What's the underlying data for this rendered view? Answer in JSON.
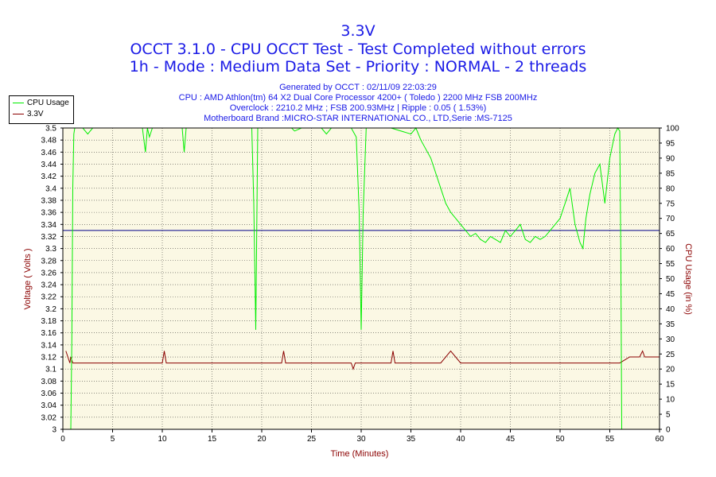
{
  "header": {
    "title": "3.3V",
    "line1": "OCCT 3.1.0 - CPU OCCT Test - Test Completed without errors",
    "line2": "1h - Mode : Medium Data Set - Priority : NORMAL - 2 threads",
    "generated": "Generated by OCCT : 02/11/09 22:03:29",
    "cpu": "CPU : AMD Athlon(tm) 64 X2 Dual Core Processor 4200+ ( Toledo ) 2200 MHz FSB 200MHz",
    "overclock": "Overclock : 2210.2 MHz ; FSB 200.93MHz | Ripple : 0.05 ( 1.53%)",
    "motherboard": "Motherboard Brand :MICRO-STAR INTERNATIONAL CO., LTD,Serie :MS-7125"
  },
  "legend": {
    "items": [
      {
        "label": "CPU Usage",
        "color": "#00ee00"
      },
      {
        "label": "3.3V",
        "color": "#8b0000"
      }
    ]
  },
  "colors": {
    "plot_bg": "#fbf8e4",
    "grid": "#000000",
    "cpu": "#00ee00",
    "voltage": "#8b0000",
    "reference": "#00008b",
    "axis_title": "#8b0000"
  },
  "chart_data": {
    "type": "line",
    "xlabel": "Time (Minutes)",
    "ylabel": "Voltage ( Volts )",
    "y2label": "CPU Usage (in %)",
    "xlim": [
      0,
      60
    ],
    "ylim": [
      3.0,
      3.5
    ],
    "y2lim": [
      0,
      100
    ],
    "x_ticks": [
      0,
      5,
      10,
      15,
      20,
      25,
      30,
      35,
      40,
      45,
      50,
      55,
      60
    ],
    "y_ticks": [
      "3",
      "3.02",
      "3.04",
      "3.06",
      "3.08",
      "3.1",
      "3.12",
      "3.14",
      "3.16",
      "3.18",
      "3.2",
      "3.22",
      "3.24",
      "3.26",
      "3.28",
      "3.3",
      "3.32",
      "3.34",
      "3.36",
      "3.38",
      "3.4",
      "3.42",
      "3.44",
      "3.46",
      "3.48",
      "3.5"
    ],
    "y2_ticks": [
      0,
      5,
      10,
      15,
      20,
      25,
      30,
      35,
      40,
      45,
      50,
      55,
      60,
      65,
      70,
      75,
      80,
      85,
      90,
      95,
      100
    ],
    "grid": "dotted",
    "reference_line": 3.33,
    "series": [
      {
        "name": "CPU Usage",
        "axis": "right",
        "x": [
          0.8,
          0.9,
          1.0,
          1.1,
          1.2,
          2.0,
          2.5,
          3.0,
          5.0,
          7.0,
          8.0,
          8.3,
          8.5,
          8.7,
          9.0,
          10.0,
          11.0,
          12.0,
          12.2,
          12.4,
          13.0,
          15.0,
          18.0,
          19.0,
          19.2,
          19.4,
          19.6,
          20.0,
          22.0,
          23.0,
          23.3,
          24.0,
          26.0,
          26.5,
          27.0,
          29.0,
          29.5,
          29.8,
          30.0,
          30.2,
          30.5,
          31.0,
          33.0,
          35.0,
          35.5,
          36.0,
          37.0,
          38.0,
          38.5,
          39.0,
          39.5,
          40.0,
          40.5,
          41.0,
          41.5,
          42.0,
          42.5,
          43.0,
          43.5,
          44.0,
          44.5,
          45.0,
          45.5,
          46.0,
          46.5,
          47.0,
          47.5,
          48.0,
          48.5,
          49.0,
          49.5,
          50.0,
          50.5,
          51.0,
          51.5,
          52.0,
          52.3,
          52.6,
          53.0,
          53.5,
          54.0,
          54.5,
          55.0,
          55.5,
          55.8,
          56.0,
          56.1,
          56.2
        ],
        "values": [
          0,
          30,
          80,
          98,
          100,
          100,
          98,
          100,
          100,
          100,
          100,
          92,
          100,
          97,
          100,
          100,
          100,
          100,
          92,
          100,
          100,
          100,
          100,
          100,
          75,
          33,
          100,
          100,
          100,
          100,
          99,
          100,
          100,
          98,
          100,
          100,
          97,
          72,
          33,
          72,
          100,
          100,
          100,
          98,
          100,
          96,
          90,
          80,
          75,
          72,
          70,
          68,
          66,
          64,
          65,
          63,
          62,
          64,
          63,
          62,
          66,
          64,
          66,
          68,
          63,
          62,
          64,
          63,
          64,
          66,
          68,
          70,
          75,
          80,
          68,
          62,
          60,
          70,
          78,
          85,
          88,
          75,
          90,
          98,
          100,
          99,
          60,
          0
        ]
      },
      {
        "name": "3.3V",
        "axis": "left",
        "x": [
          0.3,
          0.5,
          0.7,
          0.8,
          1.0,
          5.0,
          10.0,
          10.2,
          10.4,
          15.0,
          20.0,
          22.0,
          22.2,
          22.4,
          25.0,
          29.0,
          29.2,
          29.4,
          30.0,
          33.0,
          33.2,
          33.4,
          35.0,
          38.0,
          39.0,
          40.0,
          42.0,
          45.0,
          48.0,
          50.0,
          52.0,
          54.0,
          55.0,
          56.0,
          57.0,
          58.0,
          58.3,
          58.5,
          59.0,
          60.0
        ],
        "values": [
          3.13,
          3.12,
          3.11,
          3.12,
          3.11,
          3.11,
          3.11,
          3.13,
          3.11,
          3.11,
          3.11,
          3.11,
          3.13,
          3.11,
          3.11,
          3.11,
          3.1,
          3.11,
          3.11,
          3.11,
          3.13,
          3.11,
          3.11,
          3.11,
          3.13,
          3.11,
          3.11,
          3.11,
          3.11,
          3.11,
          3.11,
          3.11,
          3.11,
          3.11,
          3.12,
          3.12,
          3.13,
          3.12,
          3.12,
          3.12
        ]
      }
    ]
  }
}
